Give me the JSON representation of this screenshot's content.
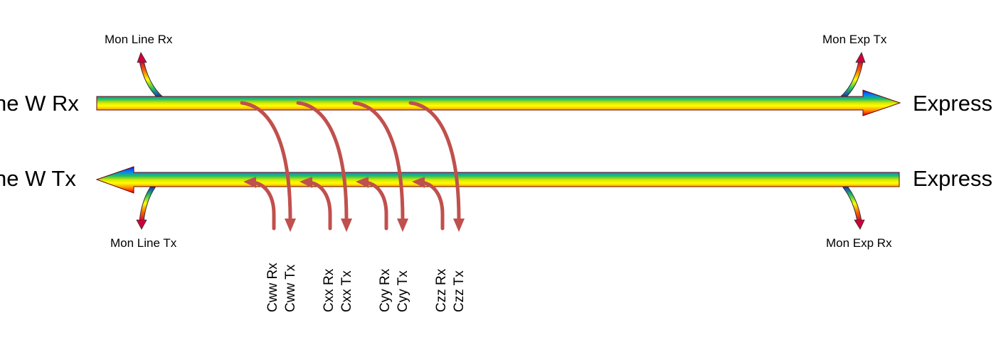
{
  "labels": {
    "line_rx": "ne W Rx",
    "line_tx": "ne W Tx",
    "express_top": "Express",
    "express_bottom": "Express",
    "mon_line_rx": "Mon Line Rx",
    "mon_exp_tx": "Mon Exp Tx",
    "mon_line_tx": "Mon Line Tx",
    "mon_exp_rx": "Mon Exp Rx"
  },
  "channels": [
    {
      "rx": "Cww Rx",
      "tx": "Cww Tx"
    },
    {
      "rx": "Cxx Rx",
      "tx": "Cxx Tx"
    },
    {
      "rx": "Cyy Rx",
      "tx": "Cyy Tx"
    },
    {
      "rx": "Czz Rx",
      "tx": "Czz Tx"
    }
  ],
  "colors": {
    "add_drop_arrow": "#c0504d",
    "rainbow": [
      "#0000ff",
      "#00a0ff",
      "#00d060",
      "#c0e000",
      "#ffff00",
      "#ffa000",
      "#ff3000",
      "#c00000"
    ]
  }
}
